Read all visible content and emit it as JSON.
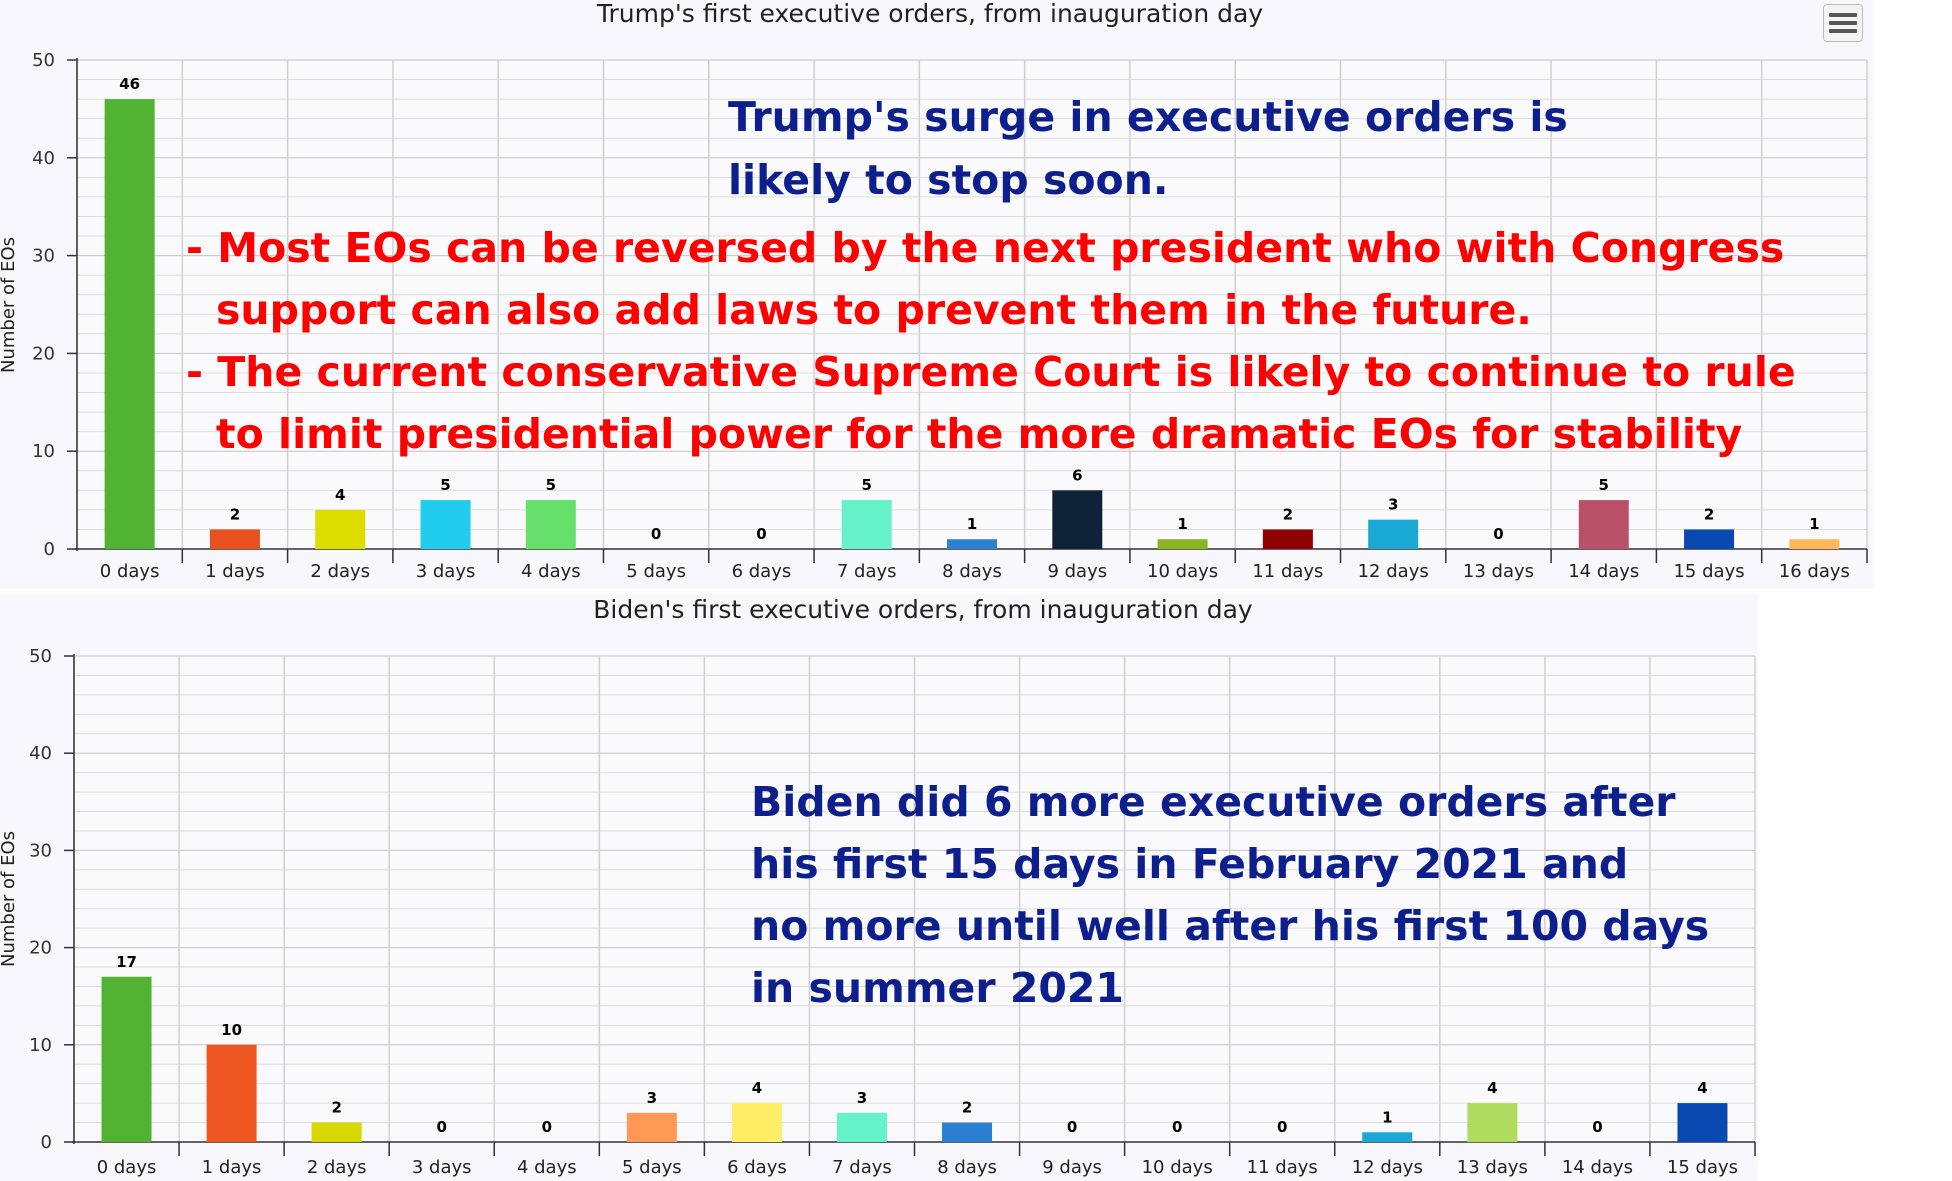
{
  "charts": [
    {
      "id": "trump",
      "title": "Trump's first executive orders, from inauguration day",
      "ylabel": "Number of EOs",
      "categories": [
        "0 days",
        "1 days",
        "2 days",
        "3 days",
        "4 days",
        "5 days",
        "6 days",
        "7 days",
        "8 days",
        "9 days",
        "10 days",
        "11 days",
        "12 days",
        "13 days",
        "14 days",
        "15 days",
        "16 days"
      ],
      "values": [
        46,
        2,
        4,
        5,
        5,
        0,
        0,
        5,
        1,
        6,
        1,
        2,
        3,
        0,
        5,
        2,
        1
      ],
      "colors": [
        "#52b232",
        "#e8511f",
        "#dddd00",
        "#22ccee",
        "#66e06b",
        "#888888",
        "#888888",
        "#66f2c8",
        "#2c7fd1",
        "#0f2238",
        "#8ab520",
        "#900000",
        "#1aa8d4",
        "#888888",
        "#b85068",
        "#0a49b1",
        "#ffb75a"
      ],
      "yticks": [
        "0",
        "10",
        "20",
        "30",
        "40",
        "50"
      ],
      "ylim": [
        0,
        50
      ],
      "annotation_blue": [
        "Trump's surge in executive orders is",
        "likely to stop soon."
      ],
      "annotation_red": [
        "- Most EOs can be reversed by the next president who with Congress",
        "support can also add laws to prevent them in the future.",
        "- The current conservative Supreme Court is likely to continue to rule",
        "to limit presidential power for the more dramatic EOs for stability"
      ]
    },
    {
      "id": "biden",
      "title": "Biden's first executive orders, from inauguration day",
      "ylabel": "Number of EOs",
      "categories": [
        "0 days",
        "1 days",
        "2 days",
        "3 days",
        "4 days",
        "5 days",
        "6 days",
        "7 days",
        "8 days",
        "9 days",
        "10 days",
        "11 days",
        "12 days",
        "13 days",
        "14 days",
        "15 days"
      ],
      "values": [
        17,
        10,
        2,
        0,
        0,
        3,
        4,
        3,
        2,
        0,
        0,
        0,
        1,
        4,
        0,
        4
      ],
      "colors": [
        "#52b232",
        "#ee5721",
        "#d8d800",
        "#888888",
        "#888888",
        "#ff9955",
        "#ffee66",
        "#66f2c8",
        "#2c7fd1",
        "#888888",
        "#888888",
        "#888888",
        "#1aa8d4",
        "#afdc5e",
        "#888888",
        "#0a49b1"
      ],
      "yticks": [
        "0",
        "10",
        "20",
        "30",
        "40",
        "50"
      ],
      "ylim": [
        0,
        50
      ],
      "annotation_blue": [
        "Biden did 6 more executive orders after",
        "his first 15 days in February 2021 and",
        "no more until well after his first 100 days",
        "in summer 2021"
      ]
    }
  ],
  "chart_data": [
    {
      "type": "bar",
      "title": "Trump's first executive orders, from inauguration day",
      "xlabel": "",
      "ylabel": "Number of EOs",
      "categories": [
        "0 days",
        "1 days",
        "2 days",
        "3 days",
        "4 days",
        "5 days",
        "6 days",
        "7 days",
        "8 days",
        "9 days",
        "10 days",
        "11 days",
        "12 days",
        "13 days",
        "14 days",
        "15 days",
        "16 days"
      ],
      "values": [
        46,
        2,
        4,
        5,
        5,
        0,
        0,
        5,
        1,
        6,
        1,
        2,
        3,
        0,
        5,
        2,
        1
      ],
      "ylim": [
        0,
        50
      ],
      "grid": true
    },
    {
      "type": "bar",
      "title": "Biden's first executive orders, from inauguration day",
      "xlabel": "",
      "ylabel": "Number of EOs",
      "categories": [
        "0 days",
        "1 days",
        "2 days",
        "3 days",
        "4 days",
        "5 days",
        "6 days",
        "7 days",
        "8 days",
        "9 days",
        "10 days",
        "11 days",
        "12 days",
        "13 days",
        "14 days",
        "15 days"
      ],
      "values": [
        17,
        10,
        2,
        0,
        0,
        3,
        4,
        3,
        2,
        0,
        0,
        0,
        1,
        4,
        0,
        4
      ],
      "ylim": [
        0,
        50
      ],
      "grid": true
    }
  ]
}
